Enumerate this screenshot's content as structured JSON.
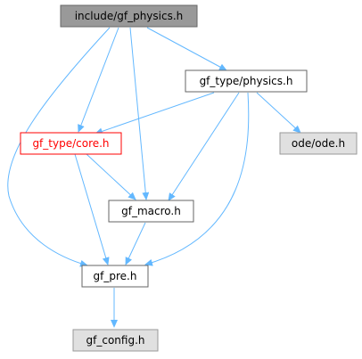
{
  "nodes": {
    "root": {
      "label": "include/gf_physics.h"
    },
    "physics": {
      "label": "gf_type/physics.h"
    },
    "core": {
      "label": "gf_type/core.h"
    },
    "ode": {
      "label": "ode/ode.h"
    },
    "macro": {
      "label": "gf_macro.h"
    },
    "pre": {
      "label": "gf_pre.h"
    },
    "config": {
      "label": "gf_config.h"
    }
  },
  "edges": [
    [
      "root",
      "physics"
    ],
    [
      "root",
      "core"
    ],
    [
      "root",
      "macro"
    ],
    [
      "root",
      "pre"
    ],
    [
      "physics",
      "core"
    ],
    [
      "physics",
      "ode"
    ],
    [
      "physics",
      "macro"
    ],
    [
      "physics",
      "pre"
    ],
    [
      "core",
      "macro"
    ],
    [
      "core",
      "pre"
    ],
    [
      "macro",
      "pre"
    ],
    [
      "pre",
      "config"
    ]
  ],
  "colors": {
    "edge": "#63b8ff",
    "root_fill": "#999999",
    "root_stroke": "#666666",
    "normal_fill": "#ffffff",
    "normal_stroke": "#666666",
    "highlight_stroke": "#ff0000",
    "highlight_text": "#ff0000",
    "external_fill": "#e0e0e0",
    "external_stroke": "#999999"
  }
}
